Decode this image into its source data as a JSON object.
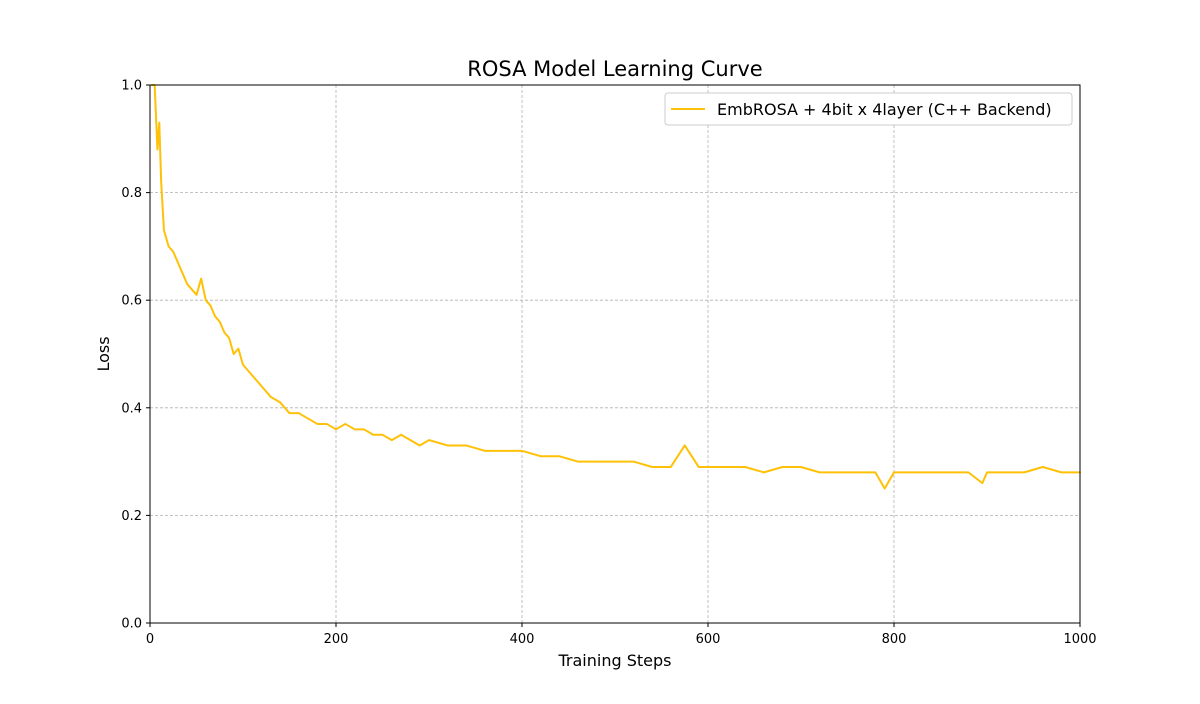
{
  "chart_data": {
    "type": "line",
    "title": "ROSA Model Learning Curve",
    "xlabel": "Training Steps",
    "ylabel": "Loss",
    "xlim": [
      0,
      1000
    ],
    "ylim": [
      0.0,
      1.0
    ],
    "x_ticks": [
      "0",
      "200",
      "400",
      "600",
      "800",
      "1000"
    ],
    "y_ticks": [
      "0.0",
      "0.2",
      "0.4",
      "0.6",
      "0.8",
      "1.0"
    ],
    "grid": true,
    "legend_position": "top-right",
    "series": [
      {
        "name": "EmbROSA + 4bit x 4layer (C++ Backend)",
        "color": "#FFC107",
        "x": [
          2,
          5,
          8,
          10,
          12,
          15,
          20,
          25,
          30,
          35,
          40,
          45,
          50,
          55,
          60,
          65,
          70,
          75,
          80,
          85,
          90,
          95,
          100,
          110,
          120,
          130,
          140,
          150,
          160,
          170,
          180,
          190,
          200,
          210,
          220,
          230,
          240,
          250,
          260,
          270,
          280,
          290,
          300,
          320,
          340,
          360,
          380,
          400,
          420,
          440,
          460,
          480,
          500,
          520,
          540,
          560,
          575,
          590,
          600,
          620,
          640,
          660,
          680,
          700,
          720,
          740,
          760,
          780,
          790,
          800,
          820,
          840,
          860,
          880,
          895,
          900,
          920,
          940,
          960,
          980,
          1000
        ],
        "y": [
          1.0,
          1.0,
          0.88,
          0.93,
          0.82,
          0.73,
          0.7,
          0.69,
          0.67,
          0.65,
          0.63,
          0.62,
          0.61,
          0.64,
          0.6,
          0.59,
          0.57,
          0.56,
          0.54,
          0.53,
          0.5,
          0.51,
          0.48,
          0.46,
          0.44,
          0.42,
          0.41,
          0.39,
          0.39,
          0.38,
          0.37,
          0.37,
          0.36,
          0.37,
          0.36,
          0.36,
          0.35,
          0.35,
          0.34,
          0.35,
          0.34,
          0.33,
          0.34,
          0.33,
          0.33,
          0.32,
          0.32,
          0.32,
          0.31,
          0.31,
          0.3,
          0.3,
          0.3,
          0.3,
          0.29,
          0.29,
          0.33,
          0.29,
          0.29,
          0.29,
          0.29,
          0.28,
          0.29,
          0.29,
          0.28,
          0.28,
          0.28,
          0.28,
          0.25,
          0.28,
          0.28,
          0.28,
          0.28,
          0.28,
          0.26,
          0.28,
          0.28,
          0.28,
          0.29,
          0.28,
          0.28
        ]
      }
    ]
  }
}
